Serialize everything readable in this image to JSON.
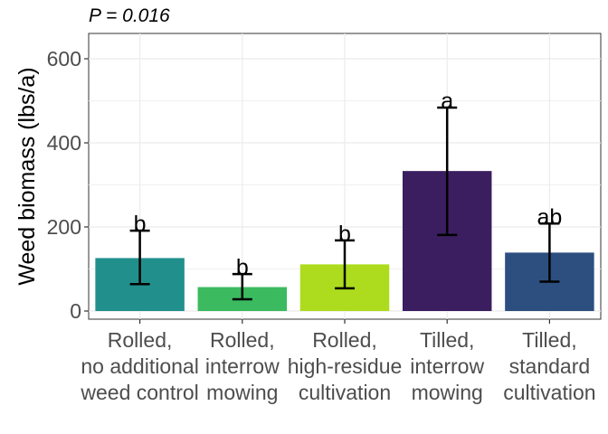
{
  "chart_data": {
    "type": "bar",
    "subtitle": "P = 0.016",
    "ylabel": "Weed biomass (lbs/a)",
    "ylim": [
      0,
      660
    ],
    "yticks": [
      0,
      200,
      400,
      600
    ],
    "grid": true,
    "categories": [
      [
        "Rolled,",
        "no additional",
        "weed control"
      ],
      [
        "Rolled,",
        "interrow",
        "mowing"
      ],
      [
        "Rolled,",
        "high-residue",
        "cultivation"
      ],
      [
        "Tilled,",
        "interrow",
        "mowing"
      ],
      [
        "Tilled,",
        "standard",
        "cultivation"
      ]
    ],
    "values": [
      126,
      57,
      111,
      333,
      139
    ],
    "error_low": [
      64,
      28,
      54,
      181,
      70
    ],
    "error_high": [
      191,
      88,
      168,
      484,
      208
    ],
    "letters": [
      "b",
      "b",
      "b",
      "a",
      "ab"
    ],
    "colors": [
      "#21908C",
      "#3BBA5F",
      "#ADDC1E",
      "#3B1E5F",
      "#2C4F80"
    ]
  }
}
